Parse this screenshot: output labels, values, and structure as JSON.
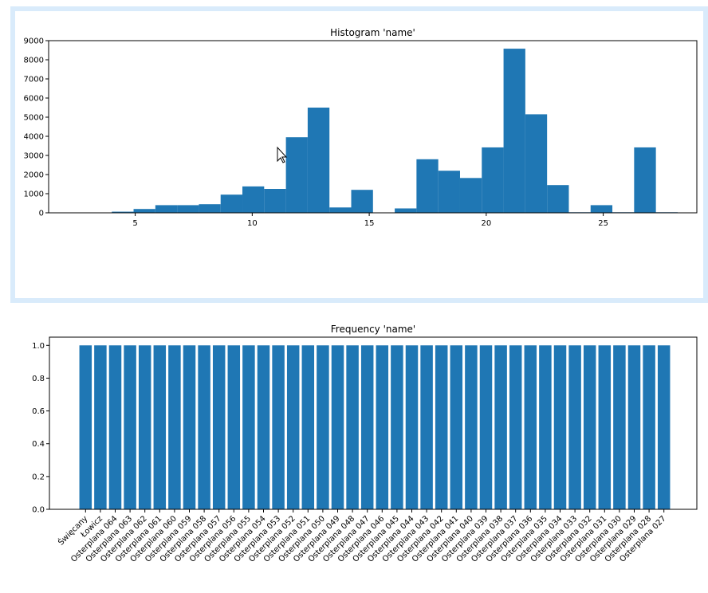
{
  "colors": {
    "bar": "#1f77b4",
    "axis": "#000000",
    "selection_border": "#d9ebfb"
  },
  "chart_data": [
    {
      "type": "bar",
      "title": "Histogram 'name'",
      "xlabel": "",
      "ylabel": "",
      "xlim": [
        1.3,
        29.0
      ],
      "ylim": [
        0,
        9000
      ],
      "xticks": [
        5,
        10,
        15,
        20,
        25
      ],
      "yticks": [
        0,
        1000,
        2000,
        3000,
        4000,
        5000,
        6000,
        7000,
        8000,
        9000
      ],
      "bin_width": 0.93,
      "bins": [
        {
          "x": 4.0,
          "value": 60
        },
        {
          "x": 4.93,
          "value": 200
        },
        {
          "x": 5.86,
          "value": 400
        },
        {
          "x": 6.79,
          "value": 400
        },
        {
          "x": 7.72,
          "value": 450
        },
        {
          "x": 8.65,
          "value": 950
        },
        {
          "x": 9.58,
          "value": 1380
        },
        {
          "x": 10.51,
          "value": 1250
        },
        {
          "x": 11.44,
          "value": 3950
        },
        {
          "x": 12.37,
          "value": 5500
        },
        {
          "x": 13.3,
          "value": 280
        },
        {
          "x": 14.23,
          "value": 1200
        },
        {
          "x": 15.16,
          "value": 0
        },
        {
          "x": 16.09,
          "value": 230
        },
        {
          "x": 17.02,
          "value": 2800
        },
        {
          "x": 17.95,
          "value": 2200
        },
        {
          "x": 18.88,
          "value": 1820
        },
        {
          "x": 19.81,
          "value": 3420
        },
        {
          "x": 20.74,
          "value": 8580
        },
        {
          "x": 21.67,
          "value": 5150
        },
        {
          "x": 22.6,
          "value": 1450
        },
        {
          "x": 23.53,
          "value": 30
        },
        {
          "x": 24.46,
          "value": 400
        },
        {
          "x": 25.39,
          "value": 30
        },
        {
          "x": 26.32,
          "value": 3420
        },
        {
          "x": 27.25,
          "value": 30
        }
      ]
    },
    {
      "type": "bar",
      "title": "Frequency 'name'",
      "xlabel": "",
      "ylabel": "",
      "ylim": [
        0,
        1.05
      ],
      "yticks": [
        "0.0",
        "0.2",
        "0.4",
        "0.6",
        "0.8",
        "1.0"
      ],
      "categories": [
        "Święcany",
        "Łowicz",
        "Osterplana 064",
        "Osterplana 063",
        "Osterplana 062",
        "Osterplana 061",
        "Osterplana 060",
        "Osterplana 059",
        "Osterplana 058",
        "Osterplana 057",
        "Osterplana 056",
        "Osterplana 055",
        "Osterplana 054",
        "Osterplana 053",
        "Osterplana 052",
        "Osterplana 051",
        "Osterplana 050",
        "Osterplana 049",
        "Osterplana 048",
        "Osterplana 047",
        "Osterplana 046",
        "Osterplana 045",
        "Osterplana 044",
        "Osterplana 043",
        "Osterplana 042",
        "Osterplana 041",
        "Osterplana 040",
        "Osterplana 039",
        "Osterplana 038",
        "Osterplana 037",
        "Osterplana 036",
        "Osterplana 035",
        "Osterplana 034",
        "Osterplana 033",
        "Osterplana 032",
        "Osterplana 031",
        "Osterplana 030",
        "Osterplana 029",
        "Osterplana 028",
        "Osterplana 027"
      ],
      "values": [
        1,
        1,
        1,
        1,
        1,
        1,
        1,
        1,
        1,
        1,
        1,
        1,
        1,
        1,
        1,
        1,
        1,
        1,
        1,
        1,
        1,
        1,
        1,
        1,
        1,
        1,
        1,
        1,
        1,
        1,
        1,
        1,
        1,
        1,
        1,
        1,
        1,
        1,
        1,
        1
      ]
    }
  ]
}
